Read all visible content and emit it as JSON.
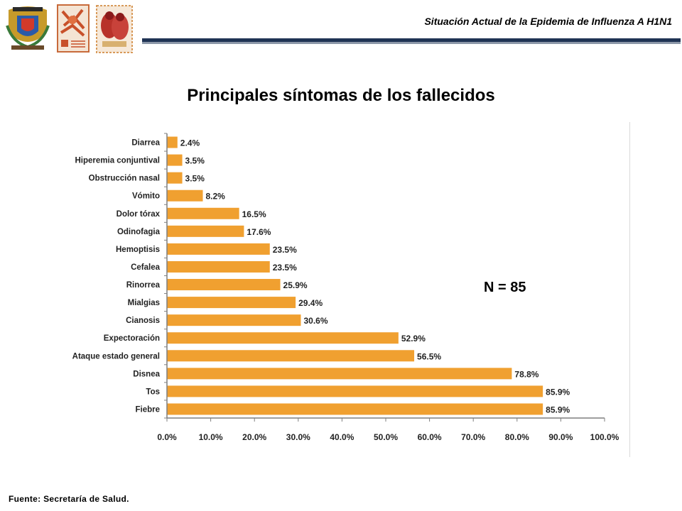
{
  "header": {
    "title": "Situación Actual de la Epidemia de Influenza A H1N1",
    "logos": [
      "unam-crest-logo",
      "faculty-emblem-logo",
      "school-emblem-logo"
    ],
    "rule_colors": [
      "#1f3354",
      "#8c97a8"
    ]
  },
  "slide_title": "Principales síntomas de los fallecidos",
  "annotation": "N = 85",
  "source": "Fuente: Secretaría de Salud.",
  "colors": {
    "bar": "#f0a030",
    "axis": "#7f7f7f"
  },
  "chart_data": {
    "type": "bar",
    "orientation": "horizontal",
    "title": "Principales síntomas de los fallecidos",
    "xlabel": "",
    "ylabel": "",
    "xlim": [
      0,
      100
    ],
    "grid": false,
    "categories": [
      "Diarrea",
      "Hiperemia conjuntival",
      "Obstrucción nasal",
      "Vómito",
      "Dolor tórax",
      "Odinofagia",
      "Hemoptisis",
      "Cefalea",
      "Rinorrea",
      "Mialgias",
      "Cianosis",
      "Expectoración",
      "Ataque estado general",
      "Disnea",
      "Tos",
      "Fiebre"
    ],
    "values": [
      2.4,
      3.5,
      3.5,
      8.2,
      16.5,
      17.6,
      23.5,
      23.5,
      25.9,
      29.4,
      30.6,
      52.9,
      56.5,
      78.8,
      85.9,
      85.9
    ],
    "value_labels": [
      "2.4%",
      "3.5%",
      "3.5%",
      "8.2%",
      "16.5%",
      "17.6%",
      "23.5%",
      "23.5%",
      "25.9%",
      "29.4%",
      "30.6%",
      "52.9%",
      "56.5%",
      "78.8%",
      "85.9%",
      "85.9%"
    ],
    "x_ticks": [
      0,
      10,
      20,
      30,
      40,
      50,
      60,
      70,
      80,
      90,
      100
    ],
    "x_tick_labels": [
      "0.0%",
      "10.0%",
      "20.0%",
      "30.0%",
      "40.0%",
      "50.0%",
      "60.0%",
      "70.0%",
      "80.0%",
      "90.0%",
      "100.0%"
    ]
  }
}
